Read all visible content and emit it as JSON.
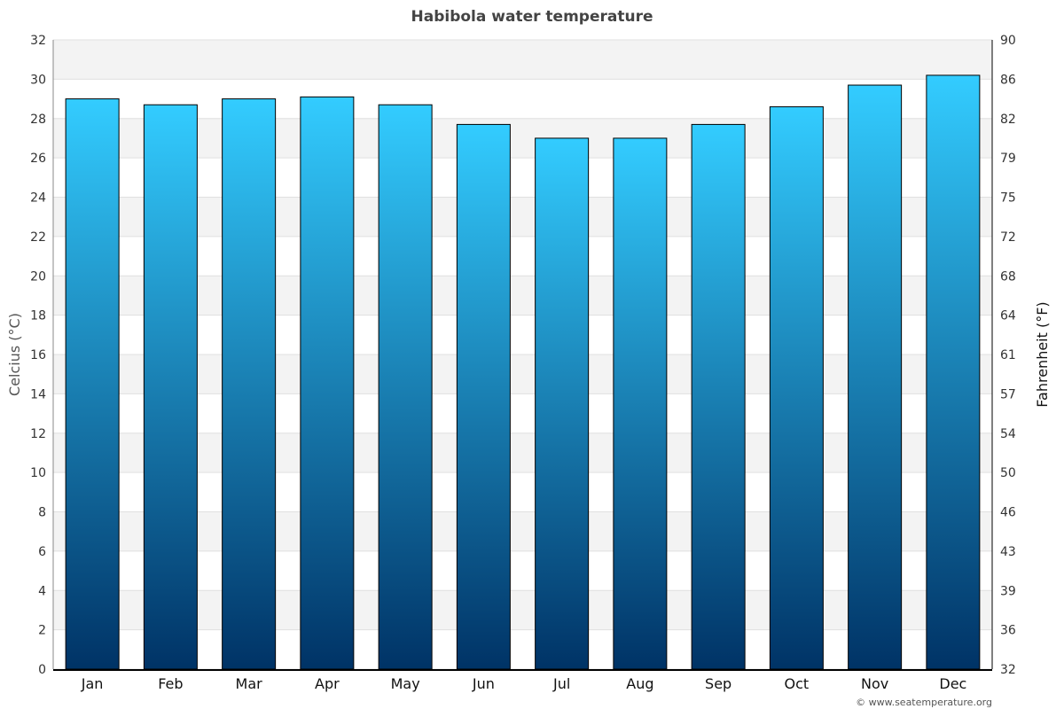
{
  "chart_data": {
    "type": "bar",
    "title": "Habibola water temperature",
    "categories": [
      "Jan",
      "Feb",
      "Mar",
      "Apr",
      "May",
      "Jun",
      "Jul",
      "Aug",
      "Sep",
      "Oct",
      "Nov",
      "Dec"
    ],
    "values": [
      29.0,
      28.7,
      29.0,
      29.1,
      28.7,
      27.7,
      27.0,
      27.0,
      27.7,
      28.6,
      29.7,
      30.2
    ],
    "ylabel": "Celcius (°C)",
    "ylabel_right": "Fahrenheit (°F)",
    "ylim": [
      0,
      32
    ],
    "yticks": [
      "0",
      "2",
      "4",
      "6",
      "8",
      "10",
      "12",
      "14",
      "16",
      "18",
      "20",
      "22",
      "24",
      "26",
      "28",
      "30",
      "32"
    ],
    "yticks_right": [
      "32",
      "36",
      "39",
      "43",
      "46",
      "50",
      "54",
      "57",
      "61",
      "64",
      "68",
      "72",
      "75",
      "79",
      "82",
      "86",
      "90"
    ],
    "grid": true,
    "colors": {
      "bar_top": "#33ccff",
      "bar_bottom": "#003366",
      "band": "#f3f3f3",
      "bar_border": "#000000"
    }
  },
  "credit": "© www.seatemperature.org"
}
